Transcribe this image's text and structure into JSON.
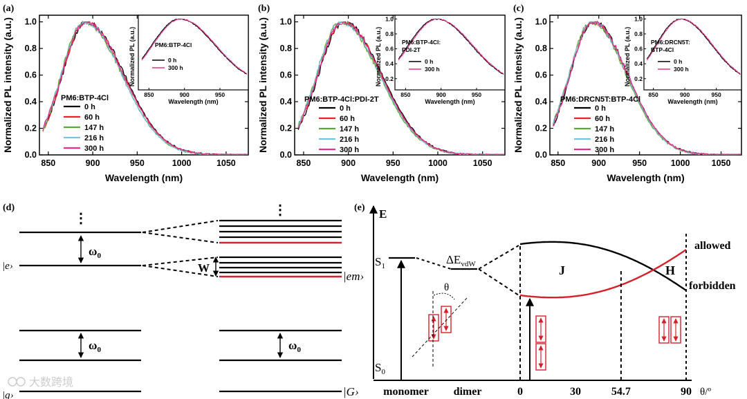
{
  "chart_data": [
    {
      "panel": "(a)",
      "type": "line",
      "xlabel": "Wavelength (nm)",
      "ylabel": "Normalized PL intensity (a.u.)",
      "xlim": [
        840,
        1075
      ],
      "ylim": [
        0.0,
        1.05
      ],
      "xticks": [
        850,
        900,
        950,
        1000,
        1050
      ],
      "yticks": [
        0.0,
        0.2,
        0.4,
        0.6,
        0.8,
        1.0
      ],
      "legend_title": "PM6:BTP-4Cl",
      "series": [
        {
          "name": "0 h",
          "color": "#000000",
          "peak": 893,
          "left_width": 38,
          "right_width": 60
        },
        {
          "name": "60 h",
          "color": "#e8202a",
          "peak": 892,
          "left_width": 37,
          "right_width": 60
        },
        {
          "name": "147 h",
          "color": "#5aa832",
          "peak": 890,
          "left_width": 36,
          "right_width": 60
        },
        {
          "name": "216 h",
          "color": "#6fc3dc",
          "peak": 891,
          "left_width": 37,
          "right_width": 59
        },
        {
          "name": "300 h",
          "color": "#e6308a",
          "peak": 892,
          "left_width": 38,
          "right_width": 60
        }
      ],
      "inset": {
        "label": "PM6:BTP-4Cl",
        "xlabel": "Wavelength (nm)",
        "ylabel": "Normalized PL (a.u.)",
        "xticks": [
          850,
          900,
          950
        ],
        "yticks": [],
        "series": [
          {
            "name": "0 h",
            "color": "#000000"
          },
          {
            "name": "300 h",
            "color": "#e6308a"
          }
        ]
      }
    },
    {
      "panel": "(b)",
      "type": "line",
      "xlabel": "Wavelength (nm)",
      "ylabel": "Normalized PL intensity (a.u.)",
      "xlim": [
        840,
        1075
      ],
      "ylim": [
        0.0,
        1.05
      ],
      "xticks": [
        850,
        900,
        950,
        1000,
        1050
      ],
      "yticks": [
        0.0,
        0.2,
        0.4,
        0.6,
        0.8,
        1.0
      ],
      "legend_title": "PM6:BTP-4Cl:PDI-2T",
      "series": [
        {
          "name": "0 h",
          "color": "#000000",
          "peak": 895,
          "left_width": 40,
          "right_width": 60
        },
        {
          "name": "60 h",
          "color": "#e8202a",
          "peak": 894,
          "left_width": 40,
          "right_width": 60
        },
        {
          "name": "147 h",
          "color": "#5aa832",
          "peak": 892,
          "left_width": 39,
          "right_width": 60
        },
        {
          "name": "216 h",
          "color": "#6fc3dc",
          "peak": 893,
          "left_width": 40,
          "right_width": 60
        },
        {
          "name": "300 h",
          "color": "#e6308a",
          "peak": 894,
          "left_width": 40,
          "right_width": 60
        }
      ],
      "inset": {
        "label": "PM6:BTP-4Cl:\nPDI-2T",
        "xlabel": "Wavelength (nm)",
        "ylabel": "Normalized PL (a.u.)",
        "xticks": [
          850,
          900,
          950
        ],
        "yticks": [
          0.2,
          0.4,
          0.6,
          0.8,
          1.0
        ],
        "series": [
          {
            "name": "0 h",
            "color": "#000000"
          },
          {
            "name": "300 h",
            "color": "#e6308a"
          }
        ]
      }
    },
    {
      "panel": "(c)",
      "type": "line",
      "xlabel": "Wavelength (nm)",
      "ylabel": "Normalized PL intensity (a.u.)",
      "xlim": [
        840,
        1075
      ],
      "ylim": [
        0.0,
        1.05
      ],
      "xticks": [
        850,
        900,
        950,
        1000,
        1050
      ],
      "yticks": [
        0.0,
        0.2,
        0.4,
        0.6,
        0.8,
        1.0
      ],
      "legend_title": "PM6:DRCN5T:BTP-4Cl",
      "series": [
        {
          "name": "0 h",
          "color": "#000000",
          "peak": 893,
          "left_width": 40,
          "right_width": 60
        },
        {
          "name": "60 h",
          "color": "#e8202a",
          "peak": 892,
          "left_width": 40,
          "right_width": 60
        },
        {
          "name": "147 h",
          "color": "#5aa832",
          "peak": 891,
          "left_width": 39,
          "right_width": 60
        },
        {
          "name": "216 h",
          "color": "#6fc3dc",
          "peak": 892,
          "left_width": 40,
          "right_width": 60
        },
        {
          "name": "300 h",
          "color": "#e6308a",
          "peak": 893,
          "left_width": 40,
          "right_width": 60
        }
      ],
      "inset": {
        "label": "PM6:DRCN5T:\nBTP-4Cl",
        "xlabel": "Wavelength (nm)",
        "ylabel": "Normalized PL (a.u.)",
        "xticks": [
          850,
          900,
          950
        ],
        "yticks": [
          0.2,
          0.4,
          0.6,
          0.8,
          1.0
        ],
        "series": [
          {
            "name": "0 h",
            "color": "#000000"
          },
          {
            "name": "300 h",
            "color": "#e6308a"
          }
        ]
      }
    }
  ],
  "panel_d": {
    "label": "(d)",
    "omega_top": "ω",
    "omega_sub": "0",
    "w_label": "W",
    "e_label": "|e›",
    "em_label": "|em›",
    "g_label": "|g›",
    "G_label": "|G›",
    "dots": "⋮"
  },
  "panel_e": {
    "label": "(e)",
    "E_label": "E",
    "S1": "S",
    "S1_sub": "1",
    "S0": "S",
    "S0_sub": "0",
    "delta": "ΔE",
    "delta_sub": "vdW",
    "theta": "θ",
    "J": "J",
    "H": "H",
    "allowed": "allowed",
    "forbidden": "forbidden",
    "x_labels": [
      "monomer",
      "dimer",
      "0",
      "30",
      "54.7",
      "90"
    ],
    "x_unit": "θ/º",
    "theta_ticks": [
      0,
      30,
      54.7,
      90
    ]
  },
  "watermark": "大数跨境",
  "colors": {
    "red": "#d4202a",
    "black": "#000000"
  }
}
